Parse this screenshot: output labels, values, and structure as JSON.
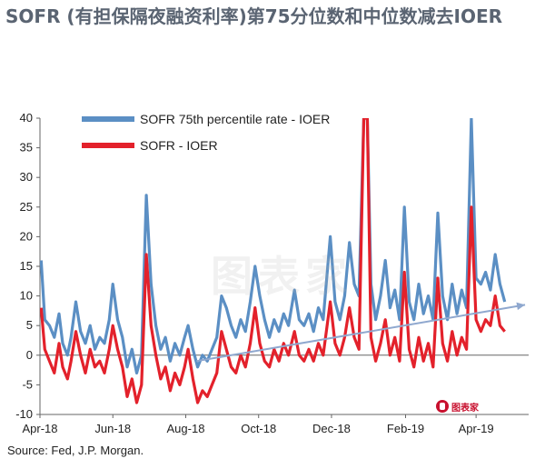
{
  "title": "SOFR (有担保隔夜融资利率)第75分位数和中位数减去IOER",
  "source": "Source: Fed, J.P. Morgan.",
  "watermark": "图表家",
  "logo_text": "图表家",
  "colors": {
    "blue": "#5b8fc4",
    "red": "#e3212b",
    "trend": "#8fa8cf",
    "grid": "#e6e6e6",
    "axis": "#666666"
  },
  "chart_data": {
    "type": "line",
    "xlabel": "",
    "ylabel": "",
    "ylim": [
      -10,
      40
    ],
    "yticks": [
      -10,
      -5,
      0,
      5,
      10,
      15,
      20,
      25,
      30,
      35,
      40
    ],
    "xlim": [
      "2018-04-01",
      "2019-05-15"
    ],
    "xticks": [
      {
        "date": "2018-04-01",
        "label": "Apr-18"
      },
      {
        "date": "2018-06-01",
        "label": "Jun-18"
      },
      {
        "date": "2018-08-01",
        "label": "Aug-18"
      },
      {
        "date": "2018-10-01",
        "label": "Oct-18"
      },
      {
        "date": "2018-12-01",
        "label": "Dec-18"
      },
      {
        "date": "2019-02-01",
        "label": "Feb-19"
      },
      {
        "date": "2019-04-01",
        "label": "Apr-19"
      }
    ],
    "legend_position": "top-left",
    "grid": false,
    "series": [
      {
        "name": "SOFR 75th percentile rate - IOER",
        "color": "#5b8fc4",
        "points": [
          [
            "2018-04-02",
            16
          ],
          [
            "2018-04-05",
            6
          ],
          [
            "2018-04-09",
            5
          ],
          [
            "2018-04-13",
            3
          ],
          [
            "2018-04-17",
            7
          ],
          [
            "2018-04-20",
            2
          ],
          [
            "2018-04-24",
            0
          ],
          [
            "2018-04-27",
            3
          ],
          [
            "2018-05-01",
            9
          ],
          [
            "2018-05-05",
            4
          ],
          [
            "2018-05-09",
            2
          ],
          [
            "2018-05-13",
            5
          ],
          [
            "2018-05-17",
            1
          ],
          [
            "2018-05-21",
            3
          ],
          [
            "2018-05-25",
            2
          ],
          [
            "2018-05-29",
            6
          ],
          [
            "2018-06-01",
            12
          ],
          [
            "2018-06-05",
            6
          ],
          [
            "2018-06-09",
            3
          ],
          [
            "2018-06-13",
            -2
          ],
          [
            "2018-06-17",
            1
          ],
          [
            "2018-06-21",
            -3
          ],
          [
            "2018-06-25",
            0
          ],
          [
            "2018-06-29",
            27
          ],
          [
            "2018-07-03",
            12
          ],
          [
            "2018-07-07",
            5
          ],
          [
            "2018-07-11",
            1
          ],
          [
            "2018-07-15",
            3
          ],
          [
            "2018-07-19",
            -1
          ],
          [
            "2018-07-23",
            2
          ],
          [
            "2018-07-27",
            0
          ],
          [
            "2018-07-31",
            3
          ],
          [
            "2018-08-03",
            5
          ],
          [
            "2018-08-07",
            1
          ],
          [
            "2018-08-11",
            -2
          ],
          [
            "2018-08-15",
            0
          ],
          [
            "2018-08-19",
            -1
          ],
          [
            "2018-08-23",
            1
          ],
          [
            "2018-08-27",
            3
          ],
          [
            "2018-08-31",
            10
          ],
          [
            "2018-09-04",
            8
          ],
          [
            "2018-09-08",
            5
          ],
          [
            "2018-09-12",
            3
          ],
          [
            "2018-09-16",
            6
          ],
          [
            "2018-09-20",
            4
          ],
          [
            "2018-09-24",
            9
          ],
          [
            "2018-09-28",
            15
          ],
          [
            "2018-10-02",
            10
          ],
          [
            "2018-10-06",
            6
          ],
          [
            "2018-10-10",
            3
          ],
          [
            "2018-10-14",
            6
          ],
          [
            "2018-10-18",
            4
          ],
          [
            "2018-10-22",
            7
          ],
          [
            "2018-10-26",
            5
          ],
          [
            "2018-10-31",
            11
          ],
          [
            "2018-11-04",
            6
          ],
          [
            "2018-11-08",
            5
          ],
          [
            "2018-11-12",
            7
          ],
          [
            "2018-11-16",
            4
          ],
          [
            "2018-11-20",
            8
          ],
          [
            "2018-11-24",
            6
          ],
          [
            "2018-11-30",
            20
          ],
          [
            "2018-12-04",
            9
          ],
          [
            "2018-12-08",
            6
          ],
          [
            "2018-12-12",
            10
          ],
          [
            "2018-12-16",
            19
          ],
          [
            "2018-12-20",
            12
          ],
          [
            "2018-12-24",
            10
          ],
          [
            "2018-12-28",
            40
          ],
          [
            "2018-12-31",
            40
          ],
          [
            "2019-01-03",
            12
          ],
          [
            "2019-01-07",
            6
          ],
          [
            "2019-01-11",
            10
          ],
          [
            "2019-01-15",
            16
          ],
          [
            "2019-01-19",
            8
          ],
          [
            "2019-01-23",
            11
          ],
          [
            "2019-01-27",
            6
          ],
          [
            "2019-01-31",
            25
          ],
          [
            "2019-02-04",
            9
          ],
          [
            "2019-02-08",
            6
          ],
          [
            "2019-02-12",
            12
          ],
          [
            "2019-02-16",
            7
          ],
          [
            "2019-02-20",
            10
          ],
          [
            "2019-02-24",
            6
          ],
          [
            "2019-02-28",
            24
          ],
          [
            "2019-03-04",
            10
          ],
          [
            "2019-03-08",
            6
          ],
          [
            "2019-03-12",
            12
          ],
          [
            "2019-03-16",
            7
          ],
          [
            "2019-03-20",
            11
          ],
          [
            "2019-03-24",
            8
          ],
          [
            "2019-03-28",
            40
          ],
          [
            "2019-04-01",
            13
          ],
          [
            "2019-04-05",
            12
          ],
          [
            "2019-04-09",
            14
          ],
          [
            "2019-04-13",
            11
          ],
          [
            "2019-04-17",
            17
          ],
          [
            "2019-04-21",
            12
          ],
          [
            "2019-04-25",
            9
          ]
        ]
      },
      {
        "name": "SOFR - IOER",
        "color": "#e3212b",
        "points": [
          [
            "2018-04-02",
            8
          ],
          [
            "2018-04-05",
            1
          ],
          [
            "2018-04-09",
            -1
          ],
          [
            "2018-04-13",
            -3
          ],
          [
            "2018-04-17",
            2
          ],
          [
            "2018-04-20",
            -2
          ],
          [
            "2018-04-24",
            -4
          ],
          [
            "2018-04-27",
            -1
          ],
          [
            "2018-05-01",
            4
          ],
          [
            "2018-05-05",
            0
          ],
          [
            "2018-05-09",
            -3
          ],
          [
            "2018-05-13",
            1
          ],
          [
            "2018-05-17",
            -2
          ],
          [
            "2018-05-21",
            -1
          ],
          [
            "2018-05-25",
            -3
          ],
          [
            "2018-05-29",
            1
          ],
          [
            "2018-06-01",
            5
          ],
          [
            "2018-06-05",
            1
          ],
          [
            "2018-06-09",
            -2
          ],
          [
            "2018-06-13",
            -7
          ],
          [
            "2018-06-17",
            -4
          ],
          [
            "2018-06-21",
            -8
          ],
          [
            "2018-06-25",
            -5
          ],
          [
            "2018-06-29",
            17
          ],
          [
            "2018-07-03",
            5
          ],
          [
            "2018-07-07",
            0
          ],
          [
            "2018-07-11",
            -4
          ],
          [
            "2018-07-15",
            -2
          ],
          [
            "2018-07-19",
            -6
          ],
          [
            "2018-07-23",
            -3
          ],
          [
            "2018-07-27",
            -5
          ],
          [
            "2018-07-31",
            -2
          ],
          [
            "2018-08-03",
            1
          ],
          [
            "2018-08-07",
            -4
          ],
          [
            "2018-08-11",
            -8
          ],
          [
            "2018-08-15",
            -6
          ],
          [
            "2018-08-19",
            -7
          ],
          [
            "2018-08-23",
            -5
          ],
          [
            "2018-08-27",
            -3
          ],
          [
            "2018-08-31",
            4
          ],
          [
            "2018-09-04",
            1
          ],
          [
            "2018-09-08",
            -2
          ],
          [
            "2018-09-12",
            -3
          ],
          [
            "2018-09-16",
            0
          ],
          [
            "2018-09-20",
            -2
          ],
          [
            "2018-09-24",
            2
          ],
          [
            "2018-09-28",
            8
          ],
          [
            "2018-10-02",
            2
          ],
          [
            "2018-10-06",
            -1
          ],
          [
            "2018-10-10",
            -2
          ],
          [
            "2018-10-14",
            1
          ],
          [
            "2018-10-18",
            -1
          ],
          [
            "2018-10-22",
            2
          ],
          [
            "2018-10-26",
            0
          ],
          [
            "2018-10-31",
            4
          ],
          [
            "2018-11-04",
            0
          ],
          [
            "2018-11-08",
            -1
          ],
          [
            "2018-11-12",
            1
          ],
          [
            "2018-11-16",
            -1
          ],
          [
            "2018-11-20",
            2
          ],
          [
            "2018-11-24",
            0
          ],
          [
            "2018-11-30",
            9
          ],
          [
            "2018-12-04",
            2
          ],
          [
            "2018-12-08",
            0
          ],
          [
            "2018-12-12",
            3
          ],
          [
            "2018-12-16",
            8
          ],
          [
            "2018-12-20",
            3
          ],
          [
            "2018-12-24",
            1
          ],
          [
            "2018-12-28",
            40
          ],
          [
            "2018-12-31",
            40
          ],
          [
            "2019-01-03",
            3
          ],
          [
            "2019-01-07",
            -1
          ],
          [
            "2019-01-11",
            2
          ],
          [
            "2019-01-15",
            6
          ],
          [
            "2019-01-19",
            0
          ],
          [
            "2019-01-23",
            3
          ],
          [
            "2019-01-27",
            -1
          ],
          [
            "2019-01-31",
            14
          ],
          [
            "2019-02-04",
            1
          ],
          [
            "2019-02-08",
            -2
          ],
          [
            "2019-02-12",
            3
          ],
          [
            "2019-02-16",
            -1
          ],
          [
            "2019-02-20",
            2
          ],
          [
            "2019-02-24",
            -2
          ],
          [
            "2019-02-28",
            13
          ],
          [
            "2019-03-04",
            2
          ],
          [
            "2019-03-08",
            -1
          ],
          [
            "2019-03-12",
            4
          ],
          [
            "2019-03-16",
            0
          ],
          [
            "2019-03-20",
            3
          ],
          [
            "2019-03-24",
            1
          ],
          [
            "2019-03-28",
            25
          ],
          [
            "2019-04-01",
            6
          ],
          [
            "2019-04-05",
            4
          ],
          [
            "2019-04-09",
            6
          ],
          [
            "2019-04-13",
            5
          ],
          [
            "2019-04-17",
            10
          ],
          [
            "2019-04-21",
            5
          ],
          [
            "2019-04-25",
            4
          ]
        ]
      }
    ],
    "trendline": {
      "start": [
        "2018-08-10",
        -1
      ],
      "end": [
        "2019-05-12",
        8.5
      ]
    }
  }
}
